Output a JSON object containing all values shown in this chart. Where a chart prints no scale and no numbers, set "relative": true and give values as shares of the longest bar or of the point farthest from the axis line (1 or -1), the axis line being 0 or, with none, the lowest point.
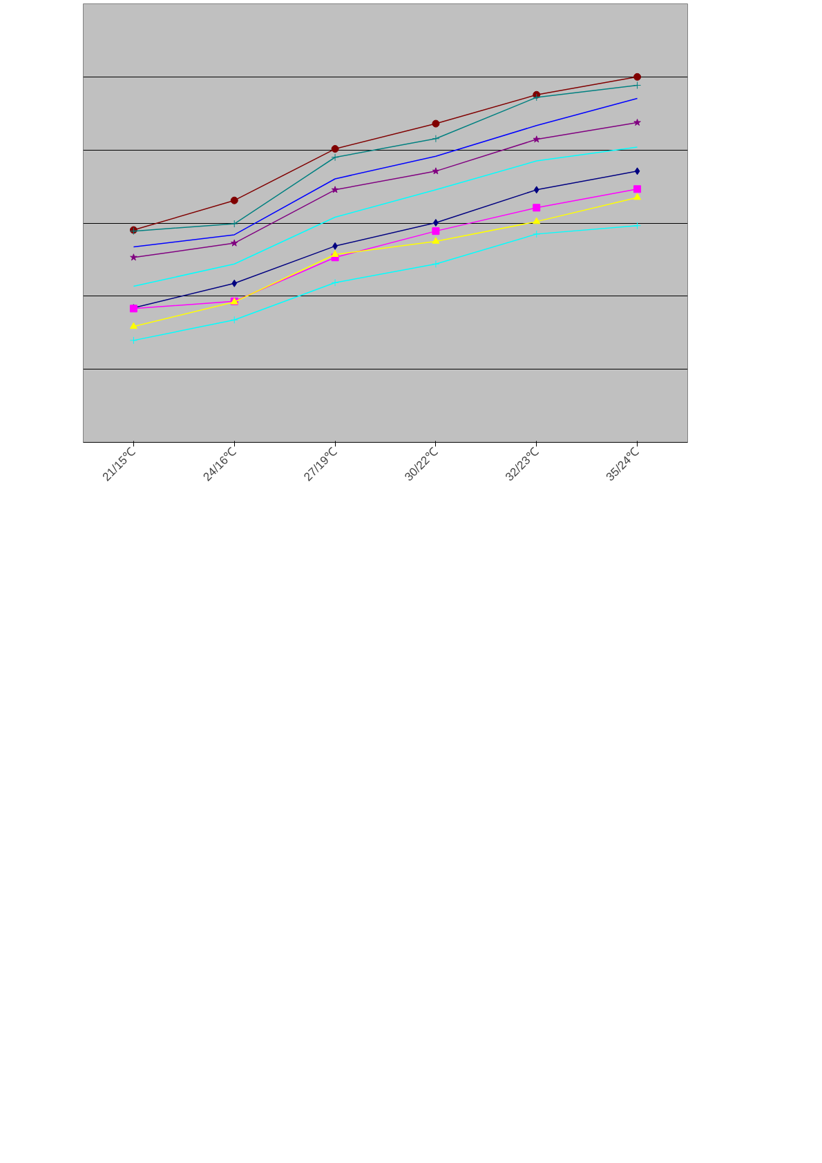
{
  "chart_data": {
    "type": "line",
    "relative": true,
    "grid": "y",
    "categories": [
      "21/15℃",
      "24/16℃",
      "27/19℃",
      "30/22℃",
      "32/23℃",
      "35/24℃"
    ],
    "series": [
      {
        "color": "#000080",
        "marker": "diamond",
        "values": [
          0.368,
          0.435,
          0.537,
          0.601,
          0.691,
          0.742
        ]
      },
      {
        "color": "#ff00ff",
        "marker": "square",
        "values": [
          0.366,
          0.386,
          0.506,
          0.578,
          0.642,
          0.693
        ]
      },
      {
        "color": "#ffff00",
        "marker": "triangle",
        "values": [
          0.317,
          0.384,
          0.514,
          0.55,
          0.604,
          0.67
        ]
      },
      {
        "color": "#00ffff",
        "marker": "cross",
        "values": [
          0.279,
          0.335,
          0.437,
          0.488,
          0.57,
          0.593
        ]
      },
      {
        "color": "#800080",
        "marker": "star",
        "values": [
          0.506,
          0.545,
          0.691,
          0.742,
          0.829,
          0.875
        ]
      },
      {
        "color": "#800000",
        "marker": "circle",
        "values": [
          0.581,
          0.662,
          0.803,
          0.872,
          0.951,
          1
        ]
      },
      {
        "color": "#008080",
        "marker": "cross",
        "values": [
          0.578,
          0.598,
          0.78,
          0.831,
          0.944,
          0.977
        ]
      },
      {
        "color": "#0000ff",
        "marker": "none",
        "values": [
          0.535,
          0.568,
          0.721,
          0.783,
          0.867,
          0.941
        ]
      },
      {
        "color": "#00ffff",
        "marker": "none",
        "values": [
          0.427,
          0.488,
          0.616,
          0.691,
          0.77,
          0.808
        ]
      }
    ]
  }
}
